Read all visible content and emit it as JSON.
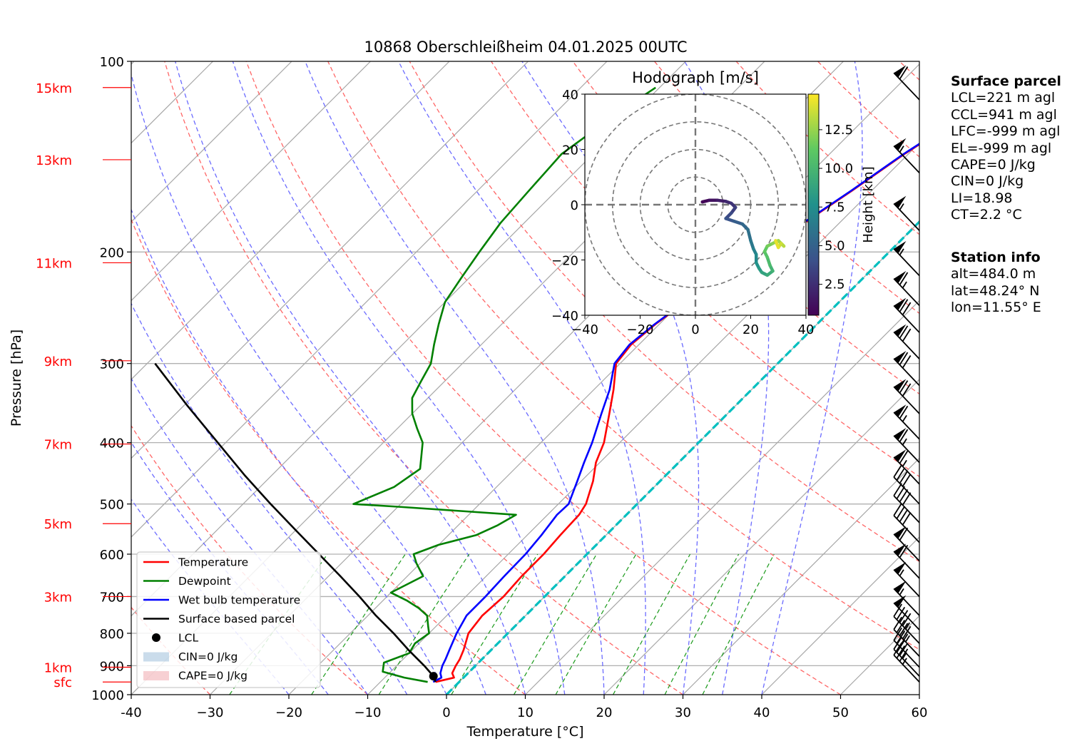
{
  "title": "10868 Oberschleißheim 04.01.2025 00UTC",
  "chart_data": {
    "type": "line",
    "xlabel": "Temperature [°C]",
    "ylabel": "Pressure [hPa]",
    "xlim": [
      -40,
      60
    ],
    "ylim": [
      1000,
      100
    ],
    "y_scale": "log",
    "skew": "skew-T log-P",
    "grid": true,
    "x_ticks": [
      "-40",
      "−30",
      "−20",
      "−10",
      "0",
      "10",
      "20",
      "30",
      "40",
      "50",
      "60"
    ],
    "x_tick_values": [
      -40,
      -30,
      -20,
      -10,
      0,
      10,
      20,
      30,
      40,
      50,
      60
    ],
    "y_ticks": [
      "100",
      "200",
      "300",
      "400",
      "500",
      "600",
      "700",
      "800",
      "900",
      "1000"
    ],
    "y_tick_values": [
      100,
      200,
      300,
      400,
      500,
      600,
      700,
      800,
      900,
      1000
    ],
    "height_labels": [
      {
        "text": "15km",
        "p": 110
      },
      {
        "text": "13km",
        "p": 143
      },
      {
        "text": "11km",
        "p": 208
      },
      {
        "text": "9km",
        "p": 297
      },
      {
        "text": "7km",
        "p": 402
      },
      {
        "text": "5km",
        "p": 537
      },
      {
        "text": "3km",
        "p": 700
      },
      {
        "text": "1km",
        "p": 905
      },
      {
        "text": "sfc",
        "p": 955
      }
    ],
    "legend_position": "lower-left",
    "legend": [
      {
        "label": "Temperature",
        "color": "#ff0000",
        "kind": "line"
      },
      {
        "label": "Dewpoint",
        "color": "#008000",
        "kind": "line"
      },
      {
        "label": "Wet bulb temperature",
        "color": "#0000ff",
        "kind": "line"
      },
      {
        "label": "Surface based parcel",
        "color": "#000000",
        "kind": "line"
      },
      {
        "label": "LCL",
        "color": "#000000",
        "kind": "dot"
      },
      {
        "label": "CIN=0 J/kg",
        "color": "#a6c4de",
        "kind": "patch"
      },
      {
        "label": "CAPE=0 J/kg",
        "color": "#f2b0b6",
        "kind": "patch"
      }
    ],
    "series": [
      {
        "name": "Temperature",
        "color": "#ff0000",
        "points": [
          [
            955,
            -3.0
          ],
          [
            940,
            -1.2
          ],
          [
            925,
            -2.0
          ],
          [
            900,
            -2.5
          ],
          [
            880,
            -2.8
          ],
          [
            850,
            -3.5
          ],
          [
            800,
            -5.0
          ],
          [
            750,
            -5.5
          ],
          [
            700,
            -5.2
          ],
          [
            650,
            -5.5
          ],
          [
            600,
            -5.5
          ],
          [
            560,
            -5.8
          ],
          [
            520,
            -6.0
          ],
          [
            500,
            -6.5
          ],
          [
            460,
            -8.5
          ],
          [
            430,
            -10.5
          ],
          [
            400,
            -12.0
          ],
          [
            360,
            -15.0
          ],
          [
            330,
            -17.5
          ],
          [
            300,
            -20.5
          ],
          [
            280,
            -21.0
          ],
          [
            260,
            -20.5
          ],
          [
            240,
            -19.5
          ],
          [
            220,
            -17.5
          ],
          [
            200,
            -15.5
          ],
          [
            180,
            -14.5
          ],
          [
            160,
            -12.5
          ],
          [
            140,
            -10.5
          ],
          [
            120,
            -7.5
          ],
          [
            110,
            -6.0
          ]
        ]
      },
      {
        "name": "Wet bulb temperature",
        "color": "#0000ff",
        "points": [
          [
            955,
            -3.3
          ],
          [
            940,
            -2.8
          ],
          [
            925,
            -3.5
          ],
          [
            900,
            -4.2
          ],
          [
            880,
            -4.6
          ],
          [
            850,
            -5.3
          ],
          [
            800,
            -6.5
          ],
          [
            750,
            -7.5
          ],
          [
            700,
            -7.5
          ],
          [
            650,
            -7.7
          ],
          [
            600,
            -7.8
          ],
          [
            560,
            -8.2
          ],
          [
            520,
            -8.8
          ],
          [
            500,
            -8.7
          ],
          [
            460,
            -10.5
          ],
          [
            430,
            -12.0
          ],
          [
            400,
            -13.5
          ],
          [
            360,
            -16.0
          ],
          [
            330,
            -18.0
          ],
          [
            300,
            -20.7
          ],
          [
            280,
            -21.2
          ],
          [
            260,
            -20.6
          ],
          [
            240,
            -19.6
          ],
          [
            220,
            -17.6
          ],
          [
            200,
            -15.6
          ],
          [
            180,
            -14.6
          ],
          [
            160,
            -12.6
          ],
          [
            140,
            -10.6
          ],
          [
            120,
            -7.6
          ],
          [
            110,
            -6.0
          ]
        ]
      },
      {
        "name": "Dewpoint",
        "color": "#008000",
        "points": [
          [
            955,
            -4.0
          ],
          [
            940,
            -7.5
          ],
          [
            920,
            -11.0
          ],
          [
            890,
            -12.0
          ],
          [
            860,
            -10.0
          ],
          [
            830,
            -10.5
          ],
          [
            800,
            -10.0
          ],
          [
            780,
            -11.0
          ],
          [
            750,
            -12.5
          ],
          [
            730,
            -14.5
          ],
          [
            710,
            -17.0
          ],
          [
            690,
            -20.0
          ],
          [
            650,
            -18.0
          ],
          [
            620,
            -20.5
          ],
          [
            600,
            -22.0
          ],
          [
            580,
            -20.0
          ],
          [
            560,
            -16.5
          ],
          [
            540,
            -15.0
          ],
          [
            520,
            -14.0
          ],
          [
            505,
            -30.0
          ],
          [
            500,
            -36.0
          ],
          [
            470,
            -33.0
          ],
          [
            440,
            -32.0
          ],
          [
            400,
            -35.0
          ],
          [
            380,
            -37.5
          ],
          [
            360,
            -40.0
          ],
          [
            340,
            -42.0
          ],
          [
            320,
            -43.0
          ],
          [
            300,
            -44.0
          ],
          [
            280,
            -46.0
          ],
          [
            260,
            -48.0
          ],
          [
            240,
            -50.0
          ],
          [
            220,
            -51.0
          ],
          [
            200,
            -52.0
          ],
          [
            180,
            -53.0
          ],
          [
            160,
            -53.5
          ],
          [
            140,
            -54.0
          ],
          [
            120,
            -52.0
          ],
          [
            110,
            -50.5
          ]
        ]
      },
      {
        "name": "Surface based parcel",
        "color": "#000000",
        "points": [
          [
            955,
            -3.0
          ],
          [
            935,
            -4.0
          ],
          [
            900,
            -6.5
          ],
          [
            850,
            -10.5
          ],
          [
            800,
            -14.5
          ],
          [
            750,
            -19.0
          ],
          [
            700,
            -23.5
          ],
          [
            650,
            -28.5
          ],
          [
            600,
            -34.0
          ],
          [
            550,
            -40.0
          ],
          [
            500,
            -46.5
          ],
          [
            450,
            -53.5
          ],
          [
            400,
            -61.0
          ],
          [
            350,
            -69.5
          ],
          [
            300,
            -79.0
          ]
        ]
      }
    ],
    "lcl": {
      "p": 935,
      "t": -4.0
    },
    "freezing_level_color": "#00bfbf",
    "hodograph": {
      "title": "Hodograph [m/s]",
      "xlim": [
        -40,
        40
      ],
      "ylim": [
        -40,
        40
      ],
      "ticks": [
        "−40",
        "−20",
        "0",
        "20",
        "40"
      ],
      "tick_values": [
        -40,
        -20,
        0,
        20,
        40
      ],
      "rings": [
        10,
        20,
        30,
        40
      ],
      "colorbar_label": "Height [km]",
      "colorbar_ticks": [
        "2.5",
        "5.0",
        "7.5",
        "10.0",
        "12.5"
      ],
      "colorbar_tick_values": [
        2.5,
        5.0,
        7.5,
        10.0,
        12.5
      ],
      "colorbar_range": [
        0.5,
        14.8
      ],
      "points": [
        [
          2.5,
          1.0,
          0.5
        ],
        [
          5,
          1.6,
          1.0
        ],
        [
          8,
          1.6,
          1.5
        ],
        [
          11,
          1.2,
          2.0
        ],
        [
          13,
          0.5,
          2.5
        ],
        [
          14.5,
          -1.0,
          3.0
        ],
        [
          13,
          -3.0,
          3.5
        ],
        [
          11,
          -5.0,
          4.0
        ],
        [
          14,
          -6.0,
          4.5
        ],
        [
          17,
          -7.0,
          5.0
        ],
        [
          19,
          -9.0,
          5.5
        ],
        [
          20,
          -13.0,
          6.0
        ],
        [
          21,
          -16.0,
          6.5
        ],
        [
          22,
          -18.0,
          7.0
        ],
        [
          22,
          -21.0,
          7.5
        ],
        [
          23,
          -23.0,
          8.0
        ],
        [
          24,
          -24.5,
          8.5
        ],
        [
          26,
          -25.5,
          9.0
        ],
        [
          28,
          -24.0,
          9.5
        ],
        [
          27,
          -22.0,
          10.0
        ],
        [
          26,
          -19.0,
          10.5
        ],
        [
          25,
          -17.0,
          11.0
        ],
        [
          26,
          -15.0,
          11.5
        ],
        [
          28,
          -14.0,
          12.0
        ],
        [
          30,
          -13.0,
          12.5
        ],
        [
          32,
          -15.0,
          13.0
        ],
        [
          31,
          -14.0,
          13.5
        ],
        [
          30,
          -15.5,
          14.0
        ],
        [
          29,
          -13.0,
          14.5
        ]
      ]
    },
    "wind_barbs": [
      {
        "p": 955,
        "kt": 35
      },
      {
        "p": 935,
        "kt": 35
      },
      {
        "p": 905,
        "kt": 30
      },
      {
        "p": 870,
        "kt": 45
      },
      {
        "p": 830,
        "kt": 45
      },
      {
        "p": 790,
        "kt": 50
      },
      {
        "p": 750,
        "kt": 55
      },
      {
        "p": 700,
        "kt": 55
      },
      {
        "p": 655,
        "kt": 60
      },
      {
        "p": 615,
        "kt": 60
      },
      {
        "p": 575,
        "kt": 40
      },
      {
        "p": 535,
        "kt": 40
      },
      {
        "p": 500,
        "kt": 40
      },
      {
        "p": 465,
        "kt": 65
      },
      {
        "p": 430,
        "kt": 65
      },
      {
        "p": 395,
        "kt": 65
      },
      {
        "p": 360,
        "kt": 70
      },
      {
        "p": 325,
        "kt": 70
      },
      {
        "p": 295,
        "kt": 70
      },
      {
        "p": 268,
        "kt": 70
      },
      {
        "p": 243,
        "kt": 65
      },
      {
        "p": 218,
        "kt": 55
      },
      {
        "p": 185,
        "kt": 55
      },
      {
        "p": 150,
        "kt": 55
      },
      {
        "p": 115,
        "kt": 60
      }
    ]
  },
  "surface_parcel": {
    "heading": "Surface parcel",
    "lines": [
      "LCL=221 m agl",
      "CCL=941 m agl",
      "LFC=-999 m agl",
      "EL=-999 m agl",
      "CAPE=0 J/kg",
      "CIN=0 J/kg",
      "LI=18.98",
      "CT=2.2 °C"
    ]
  },
  "station_info": {
    "heading": "Station info",
    "lines": [
      "alt=484.0 m",
      "lat=48.24° N",
      "lon=11.55° E"
    ]
  }
}
